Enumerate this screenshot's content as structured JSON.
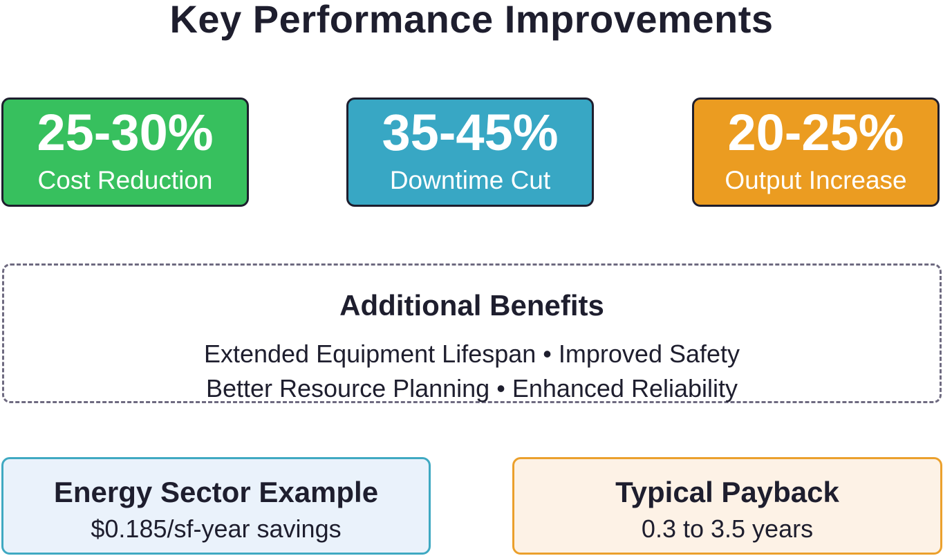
{
  "title": "Key Performance Improvements",
  "metrics": [
    {
      "value": "25-30%",
      "label": "Cost Reduction",
      "color": "#37c05e"
    },
    {
      "value": "35-45%",
      "label": "Downtime Cut",
      "color": "#38a7c4"
    },
    {
      "value": "20-25%",
      "label": "Output Increase",
      "color": "#eb9c21"
    }
  ],
  "benefits": {
    "title": "Additional Benefits",
    "lines": [
      "Extended Equipment Lifespan • Improved Safety",
      "Better Resource Planning • Enhanced Reliability"
    ]
  },
  "energy_example": {
    "title": "Energy Sector Example",
    "subtitle": "$0.185/sf-year savings",
    "border_color": "#3fa9c2",
    "background": "#eaf2fb"
  },
  "payback": {
    "title": "Typical Payback",
    "subtitle": "0.3 to 3.5 years",
    "border_color": "#eba02c",
    "background": "#fdf2e6"
  }
}
